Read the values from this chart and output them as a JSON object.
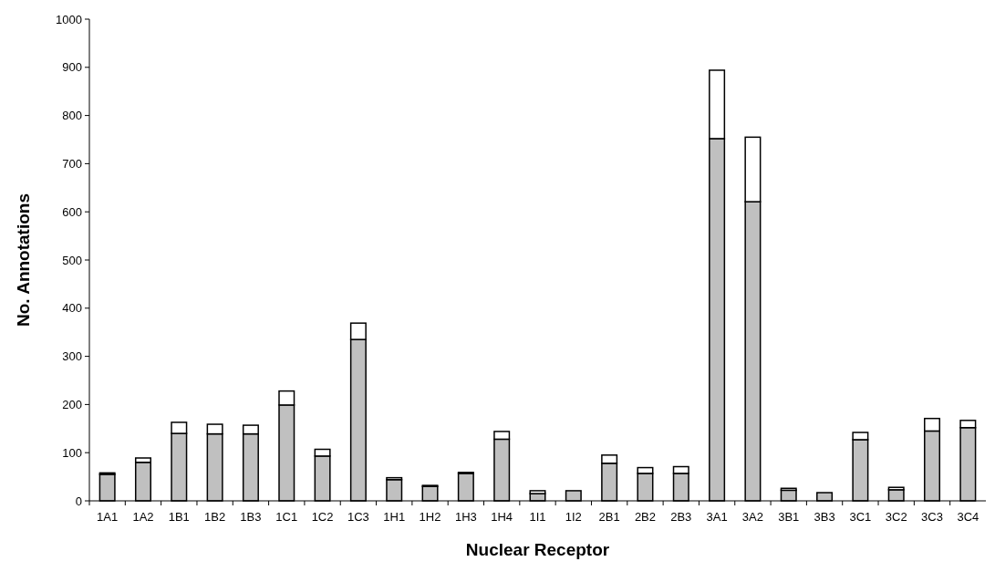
{
  "chart_data": {
    "type": "bar",
    "stacked": true,
    "xlabel": "Nuclear Receptor",
    "ylabel": "No. Annotations",
    "categories": [
      "1A1",
      "1A2",
      "1B1",
      "1B2",
      "1B3",
      "1C1",
      "1C2",
      "1C3",
      "1H1",
      "1H2",
      "1H3",
      "1H4",
      "1I1",
      "1I2",
      "2B1",
      "2B2",
      "2B3",
      "3A1",
      "3A2",
      "3B1",
      "3B3",
      "3C1",
      "3C2",
      "3C3",
      "3C4"
    ],
    "series": [
      {
        "color": "#c0c0c0",
        "values": [
          55,
          80,
          140,
          139,
          139,
          199,
          93,
          335,
          44,
          30,
          57,
          128,
          15,
          21,
          78,
          57,
          57,
          752,
          621,
          22,
          17,
          127,
          23,
          145,
          152
        ]
      },
      {
        "color": "#ffffff",
        "values": [
          3,
          9,
          23,
          20,
          18,
          29,
          14,
          34,
          4,
          2,
          2,
          16,
          6,
          0,
          17,
          12,
          14,
          142,
          134,
          4,
          0,
          15,
          5,
          26,
          15
        ]
      }
    ],
    "ylim": [
      0,
      1000
    ],
    "yticks": [
      0,
      100,
      200,
      300,
      400,
      500,
      600,
      700,
      800,
      900,
      1000
    ],
    "grid": false
  }
}
